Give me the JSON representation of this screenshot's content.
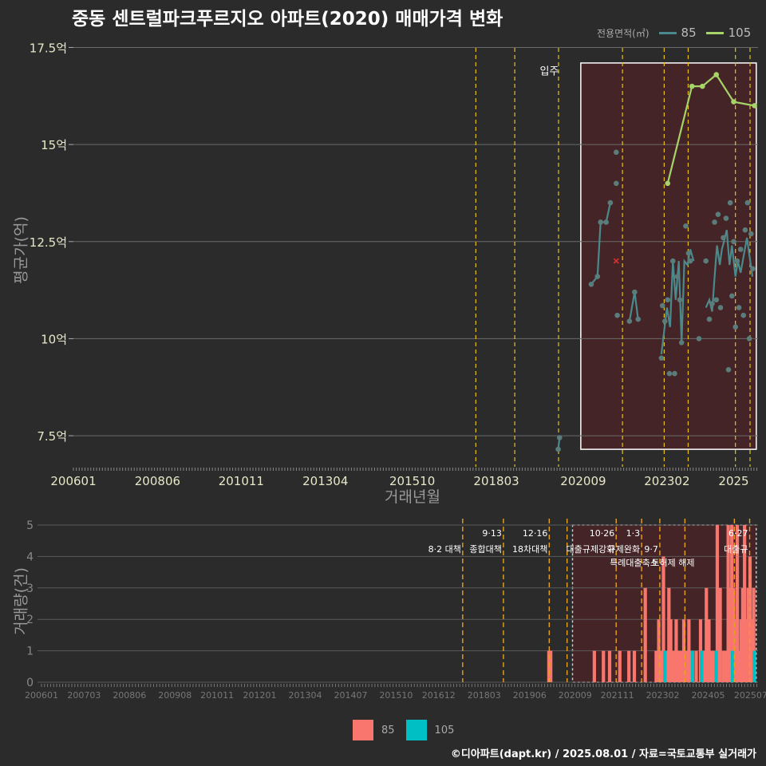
{
  "title": "중동 센트럴파크푸르지오 아파트(2020) 매매가격 변화",
  "legend_top": {
    "title": "전용면적(㎡)",
    "items": [
      {
        "label": "85",
        "color": "#4a8a8c"
      },
      {
        "label": "105",
        "color": "#a6d468"
      }
    ]
  },
  "legend_bottom": {
    "items": [
      {
        "label": "85",
        "color": "#f8766d"
      },
      {
        "label": "105",
        "color": "#00bfc4"
      }
    ]
  },
  "footer": "©디아파트(dapt.kr) / 2025.08.01 / 자료=국토교통부 실거래가",
  "chart_data": [
    {
      "type": "line",
      "title": "중동 센트럴파크푸르지오 아파트(2020) 매매가격 변화",
      "xlabel": "거래년월",
      "ylabel": "평균가(억)",
      "ylim": [
        6.7,
        17.9
      ],
      "xlim": [
        2006.0,
        2025.7
      ],
      "xticks": [
        {
          "t": 2006.0,
          "label": "200601"
        },
        {
          "t": 2008.42,
          "label": "200806"
        },
        {
          "t": 2010.83,
          "label": "201011"
        },
        {
          "t": 2013.25,
          "label": "201304"
        },
        {
          "t": 2015.75,
          "label": "201510"
        },
        {
          "t": 2018.17,
          "label": "201803"
        },
        {
          "t": 2020.67,
          "label": "202009"
        },
        {
          "t": 2023.08,
          "label": "202302"
        },
        {
          "t": 2025.0,
          "label": "2025"
        }
      ],
      "yticks": [
        {
          "v": 7.5,
          "label": "7.5억"
        },
        {
          "v": 10,
          "label": "10억"
        },
        {
          "v": 12.5,
          "label": "12.5억"
        },
        {
          "v": 15,
          "label": "15억"
        },
        {
          "v": 17.5,
          "label": "17.5억"
        }
      ],
      "vlines": [
        2017.58,
        2018.7,
        2019.96,
        2021.8,
        2023.0,
        2023.69,
        2025.05,
        2025.47
      ],
      "highlight": {
        "x0": 2020.6,
        "x1": 2025.65,
        "y0": 7.15,
        "y1": 17.1
      },
      "annotation": {
        "t": 2019.97,
        "v": 16.8,
        "text": "입주"
      },
      "marker_x": {
        "t": 2021.62,
        "v": 12.0
      },
      "series": [
        {
          "name": "85",
          "segments": [
            [
              [
                2019.95,
                7.15
              ],
              [
                2019.99,
                7.45
              ]
            ],
            [
              [
                2020.9,
                11.4
              ],
              [
                2021.08,
                11.6
              ],
              [
                2021.17,
                13.0
              ],
              [
                2021.33,
                13.0
              ],
              [
                2021.45,
                13.5
              ]
            ],
            [
              [
                2022.0,
                10.45
              ],
              [
                2022.15,
                11.2
              ],
              [
                2022.25,
                10.5
              ]
            ],
            [
              [
                2022.92,
                9.6
              ],
              [
                2023.0,
                10.2
              ],
              [
                2023.08,
                10.8
              ],
              [
                2023.17,
                10.3
              ],
              [
                2023.25,
                12.0
              ],
              [
                2023.33,
                11.0
              ],
              [
                2023.42,
                12.0
              ],
              [
                2023.5,
                9.9
              ],
              [
                2023.58,
                12.0
              ],
              [
                2023.67,
                11.9
              ],
              [
                2023.75,
                12.3
              ],
              [
                2023.85,
                12.0
              ]
            ],
            [
              [
                2024.2,
                10.8
              ],
              [
                2024.3,
                11.0
              ],
              [
                2024.38,
                10.7
              ],
              [
                2024.45,
                11.6
              ],
              [
                2024.52,
                12.4
              ],
              [
                2024.6,
                11.9
              ],
              [
                2024.66,
                12.3
              ],
              [
                2024.72,
                12.5
              ],
              [
                2024.8,
                12.8
              ],
              [
                2024.88,
                11.9
              ],
              [
                2024.95,
                12.4
              ],
              [
                2025.05,
                11.6
              ],
              [
                2025.12,
                12.0
              ],
              [
                2025.2,
                11.7
              ],
              [
                2025.3,
                12.2
              ],
              [
                2025.38,
                12.6
              ],
              [
                2025.46,
                12.1
              ],
              [
                2025.54,
                11.6
              ]
            ]
          ],
          "points": [
            [
              2019.95,
              7.15
            ],
            [
              2019.99,
              7.45
            ],
            [
              2020.9,
              11.4
            ],
            [
              2021.08,
              11.6
            ],
            [
              2021.17,
              13.0
            ],
            [
              2021.33,
              13.0
            ],
            [
              2021.45,
              13.5
            ],
            [
              2021.62,
              14.8
            ],
            [
              2021.62,
              14.0
            ],
            [
              2021.65,
              10.6
            ],
            [
              2022.0,
              10.45
            ],
            [
              2022.15,
              11.2
            ],
            [
              2022.25,
              10.5
            ],
            [
              2022.92,
              9.5
            ],
            [
              2022.95,
              10.85
            ],
            [
              2023.02,
              10.45
            ],
            [
              2023.1,
              11.0
            ],
            [
              2023.15,
              9.1
            ],
            [
              2023.25,
              12.0
            ],
            [
              2023.3,
              9.1
            ],
            [
              2023.38,
              11.6
            ],
            [
              2023.45,
              11.0
            ],
            [
              2023.5,
              9.9
            ],
            [
              2023.62,
              12.9
            ],
            [
              2023.7,
              12.2
            ],
            [
              2023.75,
              12.0
            ],
            [
              2024.0,
              10.0
            ],
            [
              2024.2,
              12.0
            ],
            [
              2024.3,
              10.5
            ],
            [
              2024.38,
              10.9
            ],
            [
              2024.45,
              13.0
            ],
            [
              2024.5,
              11.0
            ],
            [
              2024.55,
              13.2
            ],
            [
              2024.62,
              10.8
            ],
            [
              2024.7,
              12.6
            ],
            [
              2024.78,
              13.1
            ],
            [
              2024.85,
              9.2
            ],
            [
              2024.9,
              13.5
            ],
            [
              2024.95,
              11.1
            ],
            [
              2025.0,
              12.5
            ],
            [
              2025.05,
              10.3
            ],
            [
              2025.1,
              12.0
            ],
            [
              2025.15,
              10.8
            ],
            [
              2025.2,
              12.3
            ],
            [
              2025.28,
              10.6
            ],
            [
              2025.33,
              12.8
            ],
            [
              2025.4,
              13.5
            ],
            [
              2025.45,
              10.0
            ],
            [
              2025.5,
              12.7
            ],
            [
              2025.55,
              11.8
            ]
          ]
        },
        {
          "name": "105",
          "segments": [
            [
              [
                2023.1,
                14.0
              ],
              [
                2023.8,
                16.5
              ],
              [
                2024.1,
                16.5
              ],
              [
                2024.5,
                16.8
              ],
              [
                2025.0,
                16.1
              ],
              [
                2025.6,
                16.0
              ]
            ]
          ],
          "points": [
            [
              2023.1,
              14.0
            ],
            [
              2023.8,
              16.5
            ],
            [
              2024.1,
              16.5
            ],
            [
              2024.5,
              16.8
            ],
            [
              2025.0,
              16.1
            ],
            [
              2025.6,
              16.0
            ]
          ]
        }
      ]
    },
    {
      "type": "bar",
      "ylabel": "거래량(건)",
      "ylim": [
        0,
        5
      ],
      "xlim": [
        2006.0,
        2025.7
      ],
      "xticks": [
        {
          "t": 2006.0,
          "label": "200601"
        },
        {
          "t": 2007.17,
          "label": "200703"
        },
        {
          "t": 2008.42,
          "label": "200806"
        },
        {
          "t": 2009.67,
          "label": "200908"
        },
        {
          "t": 2010.83,
          "label": "201011"
        },
        {
          "t": 2012.0,
          "label": "201201"
        },
        {
          "t": 2013.25,
          "label": "201304"
        },
        {
          "t": 2014.5,
          "label": "201407"
        },
        {
          "t": 2015.75,
          "label": "201510"
        },
        {
          "t": 2016.92,
          "label": "201612"
        },
        {
          "t": 2018.17,
          "label": "201803"
        },
        {
          "t": 2019.42,
          "label": "201906"
        },
        {
          "t": 2020.67,
          "label": "202009"
        },
        {
          "t": 2021.83,
          "label": "202111"
        },
        {
          "t": 2023.08,
          "label": "202302"
        },
        {
          "t": 2024.33,
          "label": "202405"
        },
        {
          "t": 2025.5,
          "label": "202507"
        }
      ],
      "yticks": [
        0,
        1,
        2,
        3,
        4,
        5
      ],
      "vlines": [
        2017.58,
        2018.7,
        2019.96,
        2020.45,
        2021.8,
        2022.5,
        2023.0,
        2023.69,
        2025.05,
        2025.47
      ],
      "highlight": {
        "x0": 2020.6,
        "x1": 2025.65
      },
      "policy_labels": [
        {
          "t": 2017.58,
          "row": 1,
          "text": "8·2 대책"
        },
        {
          "t": 2018.7,
          "row": 0,
          "text": "9·13"
        },
        {
          "t": 2018.7,
          "row": 1,
          "text": "종합대책"
        },
        {
          "t": 2019.96,
          "row": 0,
          "text": "12·16"
        },
        {
          "t": 2019.96,
          "row": 1,
          "text": "18차대책"
        },
        {
          "t": 2021.8,
          "row": 0,
          "text": "10·26"
        },
        {
          "t": 2021.8,
          "row": 1,
          "text": "대출규제강화"
        },
        {
          "t": 2022.5,
          "row": 0,
          "text": "1·3"
        },
        {
          "t": 2022.5,
          "row": 1,
          "text": "규제완화"
        },
        {
          "t": 2023.0,
          "row": 1,
          "text": "9·7"
        },
        {
          "t": 2023.0,
          "row": 2,
          "text": "특례대출축소"
        },
        {
          "t": 2024.0,
          "row": 2,
          "text": "토허제 해제"
        },
        {
          "t": 2025.47,
          "row": 0,
          "text": "6·27"
        },
        {
          "t": 2025.47,
          "row": 1,
          "text": "대출규"
        }
      ],
      "series": [
        {
          "name": "85",
          "color": "#f8766d",
          "bars": [
            [
              2019.95,
              1
            ],
            [
              2020.0,
              1
            ],
            [
              2021.2,
              1
            ],
            [
              2021.45,
              1
            ],
            [
              2021.62,
              1
            ],
            [
              2021.9,
              1
            ],
            [
              2022.15,
              1
            ],
            [
              2022.3,
              1
            ],
            [
              2022.6,
              3
            ],
            [
              2022.9,
              1
            ],
            [
              2022.97,
              2
            ],
            [
              2023.05,
              1
            ],
            [
              2023.1,
              4
            ],
            [
              2023.17,
              1
            ],
            [
              2023.25,
              3
            ],
            [
              2023.3,
              2
            ],
            [
              2023.38,
              1
            ],
            [
              2023.45,
              2
            ],
            [
              2023.52,
              1
            ],
            [
              2023.58,
              1
            ],
            [
              2023.66,
              2
            ],
            [
              2023.73,
              1
            ],
            [
              2023.8,
              2
            ],
            [
              2023.88,
              1
            ],
            [
              2024.0,
              1
            ],
            [
              2024.12,
              2
            ],
            [
              2024.2,
              1
            ],
            [
              2024.28,
              3
            ],
            [
              2024.35,
              2
            ],
            [
              2024.42,
              1
            ],
            [
              2024.5,
              1
            ],
            [
              2024.58,
              5
            ],
            [
              2024.66,
              3
            ],
            [
              2024.75,
              1
            ],
            [
              2024.8,
              1
            ],
            [
              2024.88,
              5
            ],
            [
              2024.93,
              3
            ],
            [
              2024.98,
              5
            ],
            [
              2025.03,
              3
            ],
            [
              2025.08,
              2
            ],
            [
              2025.13,
              5
            ],
            [
              2025.18,
              1
            ],
            [
              2025.23,
              2
            ],
            [
              2025.28,
              3
            ],
            [
              2025.33,
              5
            ],
            [
              2025.38,
              2
            ],
            [
              2025.43,
              3
            ],
            [
              2025.48,
              4
            ],
            [
              2025.53,
              2
            ],
            [
              2025.58,
              3
            ]
          ]
        },
        {
          "name": "105",
          "color": "#00bfc4",
          "bars": [
            [
              2023.14,
              1
            ],
            [
              2023.9,
              1
            ],
            [
              2024.15,
              1
            ],
            [
              2024.55,
              1
            ],
            [
              2025.0,
              1
            ],
            [
              2025.6,
              1
            ]
          ]
        }
      ]
    }
  ]
}
